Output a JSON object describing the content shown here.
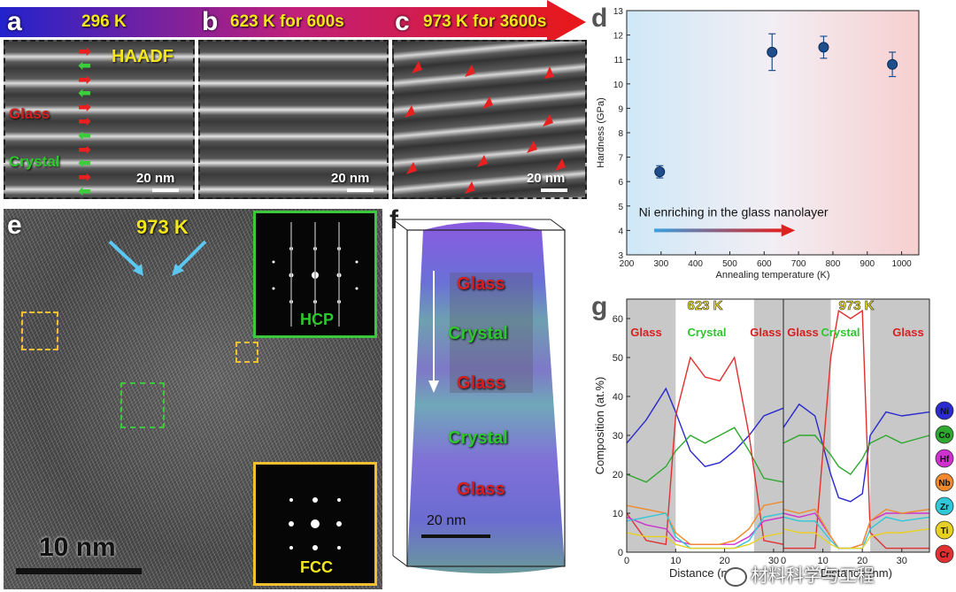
{
  "figure": {
    "banner_labels": {
      "a": "296 K",
      "b": "623 K for 600s",
      "c": "973 K for 3600s"
    },
    "panel_letters": {
      "a": "a",
      "b": "b",
      "c": "c",
      "d": "d",
      "e": "e",
      "f": "f",
      "g": "g"
    },
    "panel_a": {
      "mode": "HAADF",
      "glass": "Glass",
      "crystal": "Crystal",
      "scale": "20 nm"
    },
    "panel_b": {
      "scale": "20 nm"
    },
    "panel_c": {
      "scale": "20 nm"
    },
    "panel_e": {
      "temp": "973 K",
      "hcp": "HCP",
      "fcc": "FCC",
      "scale": "10 nm"
    },
    "panel_f": {
      "layers": [
        "Glass",
        "Crystal",
        "Glass",
        "Crystal",
        "Glass"
      ],
      "scale": "20 nm"
    },
    "watermark": "材料科学与工程"
  },
  "chart_data": [
    {
      "panel": "d",
      "type": "scatter",
      "xlabel": "Annealing temperature (K)",
      "ylabel": "Hardness (GPa)",
      "xlim": [
        200,
        1050
      ],
      "ylim": [
        3,
        13
      ],
      "xticks": [
        200,
        300,
        400,
        500,
        600,
        700,
        800,
        900,
        1000
      ],
      "yticks": [
        3,
        4,
        5,
        6,
        7,
        8,
        9,
        10,
        11,
        12,
        13
      ],
      "x": [
        296,
        623,
        773,
        973
      ],
      "y": [
        6.4,
        11.3,
        11.5,
        10.8
      ],
      "err": [
        0.25,
        0.75,
        0.45,
        0.5
      ],
      "annotation": "Ni enriching in the glass nanolayer",
      "colors": {
        "marker": "#1f4e8c",
        "bg_left": "#cfe8f7",
        "bg_right": "#f7cfcf",
        "arrow": "#e02020"
      }
    },
    {
      "panel": "g",
      "type": "line",
      "ylabel": "Composition (at.%)",
      "ylim": [
        0,
        65
      ],
      "yticks": [
        0,
        10,
        20,
        30,
        40,
        50,
        60
      ],
      "subplots": [
        {
          "title": "623 K",
          "xlabel": "Distance (nm)",
          "xlim": [
            0,
            32
          ],
          "xticks": [
            0,
            10,
            20,
            30
          ],
          "regions": [
            "Glass",
            "Crystal",
            "Glass"
          ],
          "glass_bounds": [
            [
              0,
              10
            ],
            [
              26,
              32
            ]
          ],
          "x": [
            0,
            4,
            8,
            10,
            13,
            16,
            19,
            22,
            25,
            28,
            32
          ],
          "series": [
            {
              "name": "Ni",
              "color": "#2a2ad0",
              "values": [
                28,
                34,
                42,
                36,
                26,
                22,
                23,
                26,
                30,
                35,
                37
              ]
            },
            {
              "name": "Co",
              "color": "#2fa82f",
              "values": [
                20,
                18,
                22,
                26,
                30,
                28,
                30,
                32,
                26,
                19,
                18
              ]
            },
            {
              "name": "Cr",
              "color": "#e03030",
              "values": [
                10,
                3,
                2,
                35,
                50,
                45,
                44,
                50,
                30,
                3,
                2
              ]
            },
            {
              "name": "Hf",
              "color": "#d030d0",
              "values": [
                9,
                7,
                6,
                3,
                2,
                2,
                2,
                2,
                4,
                8,
                9
              ]
            },
            {
              "name": "Nb",
              "color": "#f08a2a",
              "values": [
                12,
                11,
                10,
                5,
                2,
                2,
                2,
                3,
                6,
                12,
                13
              ]
            },
            {
              "name": "Zr",
              "color": "#30c8d8",
              "values": [
                8,
                9,
                10,
                4,
                1,
                1,
                1,
                1,
                3,
                9,
                10
              ]
            },
            {
              "name": "Ti",
              "color": "#e8d020",
              "values": [
                5,
                4,
                4,
                2,
                1,
                1,
                1,
                1,
                2,
                4,
                5
              ]
            }
          ]
        },
        {
          "title": "973 K",
          "xlabel": "Distance (nm)",
          "xlim": [
            0,
            37
          ],
          "xticks": [
            0,
            10,
            20,
            30
          ],
          "regions": [
            "Glass",
            "Crystal",
            "Glass"
          ],
          "glass_bounds": [
            [
              0,
              12
            ],
            [
              22,
              37
            ]
          ],
          "x": [
            0,
            4,
            8,
            12,
            14,
            17,
            20,
            22,
            26,
            30,
            37
          ],
          "series": [
            {
              "name": "Ni",
              "color": "#2a2ad0",
              "values": [
                32,
                38,
                35,
                20,
                14,
                13,
                15,
                30,
                36,
                35,
                36
              ]
            },
            {
              "name": "Co",
              "color": "#2fa82f",
              "values": [
                28,
                30,
                30,
                25,
                22,
                20,
                24,
                28,
                30,
                28,
                30
              ]
            },
            {
              "name": "Cr",
              "color": "#e03030",
              "values": [
                1,
                1,
                1,
                50,
                62,
                60,
                62,
                5,
                1,
                1,
                1
              ]
            },
            {
              "name": "Hf",
              "color": "#d030d0",
              "values": [
                10,
                9,
                10,
                4,
                1,
                1,
                2,
                8,
                10,
                10,
                10
              ]
            },
            {
              "name": "Nb",
              "color": "#f08a2a",
              "values": [
                11,
                10,
                11,
                4,
                1,
                1,
                2,
                8,
                11,
                10,
                11
              ]
            },
            {
              "name": "Zr",
              "color": "#30c8d8",
              "values": [
                9,
                8,
                8,
                3,
                1,
                1,
                1,
                6,
                9,
                8,
                9
              ]
            },
            {
              "name": "Ti",
              "color": "#e8d020",
              "values": [
                6,
                5,
                5,
                2,
                1,
                1,
                1,
                4,
                5,
                5,
                6
              ]
            }
          ]
        }
      ],
      "legend": [
        "Ni",
        "Co",
        "Hf",
        "Nb",
        "Zr",
        "Ti",
        "Cr"
      ]
    }
  ]
}
